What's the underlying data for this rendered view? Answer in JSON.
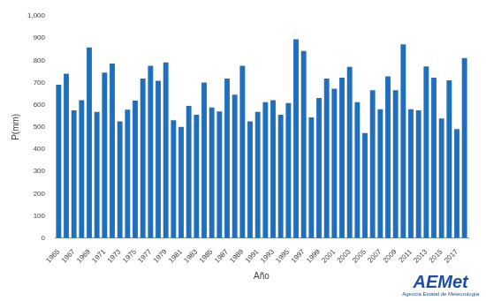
{
  "chart_data": {
    "type": "bar",
    "x_label": "Año",
    "y_label": "P(mm)",
    "annotations": [
      "AEMet",
      "Agencia Estatal de Meteorología"
    ],
    "categories": [
      "1965",
      null,
      "1967",
      null,
      "1969",
      null,
      "1971",
      null,
      "1973",
      null,
      "1975",
      null,
      "1977",
      null,
      "1979",
      null,
      "1981",
      null,
      "1983",
      null,
      "1985",
      null,
      "1987",
      null,
      "1989",
      null,
      "1991",
      null,
      "1993",
      null,
      "1995",
      null,
      "1997",
      null,
      "1999",
      null,
      "2001",
      null,
      "2003",
      null,
      "2005",
      null,
      "2007",
      null,
      "2009",
      null,
      "2011",
      null,
      "2013",
      null,
      "2015",
      null,
      "2017",
      null
    ],
    "values": [
      690,
      740,
      575,
      620,
      858,
      568,
      745,
      785,
      525,
      578,
      618,
      718,
      775,
      708,
      790,
      530,
      500,
      595,
      555,
      700,
      588,
      570,
      718,
      645,
      775,
      525,
      568,
      612,
      620,
      555,
      608,
      895,
      842,
      543,
      630,
      718,
      672,
      722,
      770,
      612,
      472,
      665,
      580,
      728,
      665,
      872,
      580,
      575,
      772,
      722,
      538,
      710,
      490,
      810
    ],
    "color": "#1f6fc0",
    "ylim": [
      0,
      1000
    ],
    "yticks": [
      0,
      100,
      200,
      300,
      400,
      500,
      600,
      700,
      800,
      900,
      1000
    ],
    "grid": false
  }
}
